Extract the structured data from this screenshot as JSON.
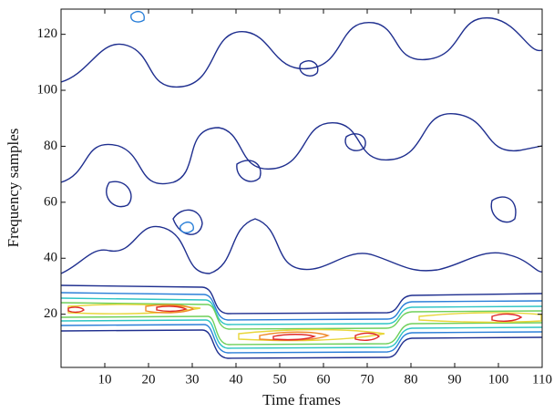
{
  "chart_data": {
    "type": "contour",
    "x_label": "Time frames",
    "y_label": "Frequency samples",
    "xlim": [
      0,
      110
    ],
    "xticks": [
      10,
      20,
      30,
      40,
      50,
      60,
      70,
      80,
      90,
      100,
      110
    ],
    "ylim": [
      1,
      129
    ],
    "yticks": [
      20,
      40,
      60,
      80,
      100,
      120
    ]
  }
}
